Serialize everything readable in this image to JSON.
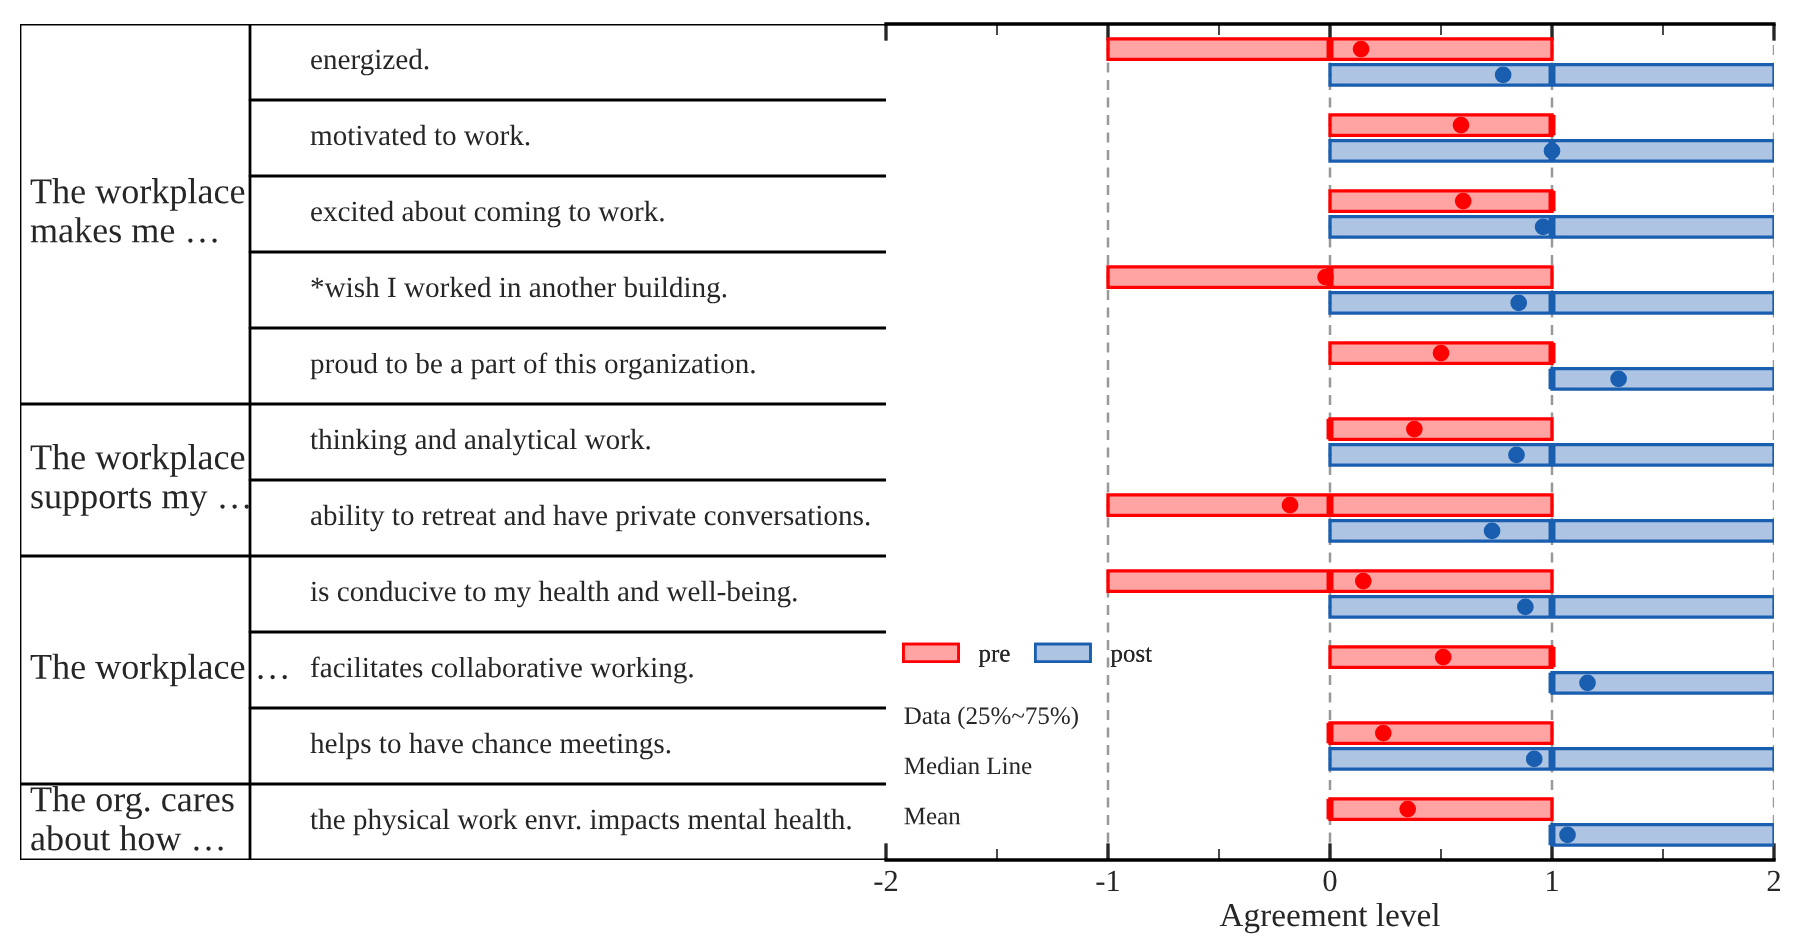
{
  "chart_data": {
    "type": "box",
    "orientation": "horizontal",
    "xlabel": "Agreement level",
    "categories": [
      "energized.",
      "motivated to work.",
      "excited about coming to work.",
      "*wish I worked in another building.",
      "proud to be a part of this organization.",
      "thinking and analytical work.",
      "ability to retreat and have private conversations.",
      "is conducive to my health and well-being.",
      "facilitates collaborative working.",
      "helps to have chance meetings.",
      "the physical work envr. impacts mental health."
    ],
    "series": [
      {
        "name": "pre",
        "color": "#ff0000",
        "boxes": [
          {
            "low": -1,
            "q1": -1,
            "median": 0,
            "q3": 1,
            "high": 1,
            "mean": 0.14
          },
          {
            "low": 0,
            "q1": 0,
            "median": 1,
            "q3": 1,
            "high": 1,
            "mean": 0.59
          },
          {
            "low": 0,
            "q1": 0,
            "median": 1,
            "q3": 1,
            "high": 1,
            "mean": 0.6
          },
          {
            "low": -1,
            "q1": -1,
            "median": 0,
            "q3": 1,
            "high": 1,
            "mean": -0.02
          },
          {
            "low": 0,
            "q1": 0,
            "median": 1,
            "q3": 1,
            "high": 1,
            "mean": 0.5
          },
          {
            "low": 0,
            "q1": 0,
            "median": 0,
            "q3": 1,
            "high": 1,
            "mean": 0.38
          },
          {
            "low": -1,
            "q1": -1,
            "median": 0,
            "q3": 1,
            "high": 1,
            "mean": -0.18
          },
          {
            "low": -1,
            "q1": -1,
            "median": 0,
            "q3": 1,
            "high": 1,
            "mean": 0.15
          },
          {
            "low": 0,
            "q1": 0,
            "median": 1,
            "q3": 1,
            "high": 1,
            "mean": 0.51
          },
          {
            "low": 0,
            "q1": 0,
            "median": 0,
            "q3": 1,
            "high": 1,
            "mean": 0.24
          },
          {
            "low": 0,
            "q1": 0,
            "median": 0,
            "q3": 1,
            "high": 1,
            "mean": 0.35
          }
        ]
      },
      {
        "name": "post",
        "color": "#1a5eb0",
        "boxes": [
          {
            "low": 0,
            "q1": 0,
            "median": 1,
            "q3": 2,
            "high": 2,
            "mean": 0.78
          },
          {
            "low": 0,
            "q1": 0,
            "median": 1,
            "q3": 2,
            "high": 2,
            "mean": 1.0
          },
          {
            "low": 0,
            "q1": 0,
            "median": 1,
            "q3": 2,
            "high": 2,
            "mean": 0.96
          },
          {
            "low": 0,
            "q1": 0,
            "median": 1,
            "q3": 2,
            "high": 2,
            "mean": 0.85
          },
          {
            "low": 1,
            "q1": 1,
            "median": 1,
            "q3": 2,
            "high": 2,
            "mean": 1.3
          },
          {
            "low": 0,
            "q1": 0,
            "median": 1,
            "q3": 2,
            "high": 2,
            "mean": 0.84
          },
          {
            "low": 0,
            "q1": 0,
            "median": 1,
            "q3": 2,
            "high": 2,
            "mean": 0.73
          },
          {
            "low": 0,
            "q1": 0,
            "median": 1,
            "q3": 2,
            "high": 2,
            "mean": 0.88
          },
          {
            "low": 1,
            "q1": 1,
            "median": 1,
            "q3": 2,
            "high": 2,
            "mean": 1.16
          },
          {
            "low": 0,
            "q1": 0,
            "median": 1,
            "q3": 2,
            "high": 2,
            "mean": 0.92
          },
          {
            "low": 1,
            "q1": 1,
            "median": 1,
            "q3": 2,
            "high": 2,
            "mean": 1.07
          }
        ]
      }
    ],
    "xlim": [
      -2,
      2
    ],
    "xticks": [
      -2,
      -1,
      0,
      1,
      2
    ],
    "grid": "x",
    "tick_labels": "x",
    "legend": "bottom left",
    "marker": "circle",
    "annotations": [
      "The workplace makes me …",
      "The workplace supports my …",
      "The workplace …",
      "The org. cares about how …",
      "Data (25%~75%)",
      "Median Line",
      "Mean"
    ]
  }
}
